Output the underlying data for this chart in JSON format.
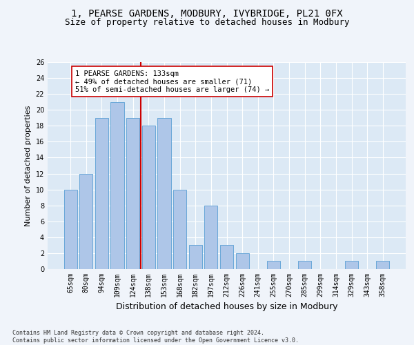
{
  "title1": "1, PEARSE GARDENS, MODBURY, IVYBRIDGE, PL21 0FX",
  "title2": "Size of property relative to detached houses in Modbury",
  "xlabel": "Distribution of detached houses by size in Modbury",
  "ylabel": "Number of detached properties",
  "categories": [
    "65sqm",
    "80sqm",
    "94sqm",
    "109sqm",
    "124sqm",
    "138sqm",
    "153sqm",
    "168sqm",
    "182sqm",
    "197sqm",
    "212sqm",
    "226sqm",
    "241sqm",
    "255sqm",
    "270sqm",
    "285sqm",
    "299sqm",
    "314sqm",
    "329sqm",
    "343sqm",
    "358sqm"
  ],
  "values": [
    10,
    12,
    19,
    21,
    19,
    18,
    19,
    10,
    3,
    8,
    3,
    2,
    0,
    1,
    0,
    1,
    0,
    0,
    1,
    0,
    1
  ],
  "bar_color": "#aec6e8",
  "bar_edge_color": "#5a9fd4",
  "vline_color": "#cc0000",
  "annotation_text": "1 PEARSE GARDENS: 133sqm\n← 49% of detached houses are smaller (71)\n51% of semi-detached houses are larger (74) →",
  "annotation_box_color": "#ffffff",
  "annotation_box_edge": "#cc0000",
  "ylim": [
    0,
    26
  ],
  "yticks": [
    0,
    2,
    4,
    6,
    8,
    10,
    12,
    14,
    16,
    18,
    20,
    22,
    24,
    26
  ],
  "footnote": "Contains HM Land Registry data © Crown copyright and database right 2024.\nContains public sector information licensed under the Open Government Licence v3.0.",
  "fig_bg_color": "#f0f4fa",
  "bg_color": "#dce9f5",
  "grid_color": "#ffffff",
  "title_fontsize": 10,
  "subtitle_fontsize": 9,
  "tick_fontsize": 7,
  "ylabel_fontsize": 8,
  "xlabel_fontsize": 9,
  "annotation_fontsize": 7.5,
  "footnote_fontsize": 6
}
